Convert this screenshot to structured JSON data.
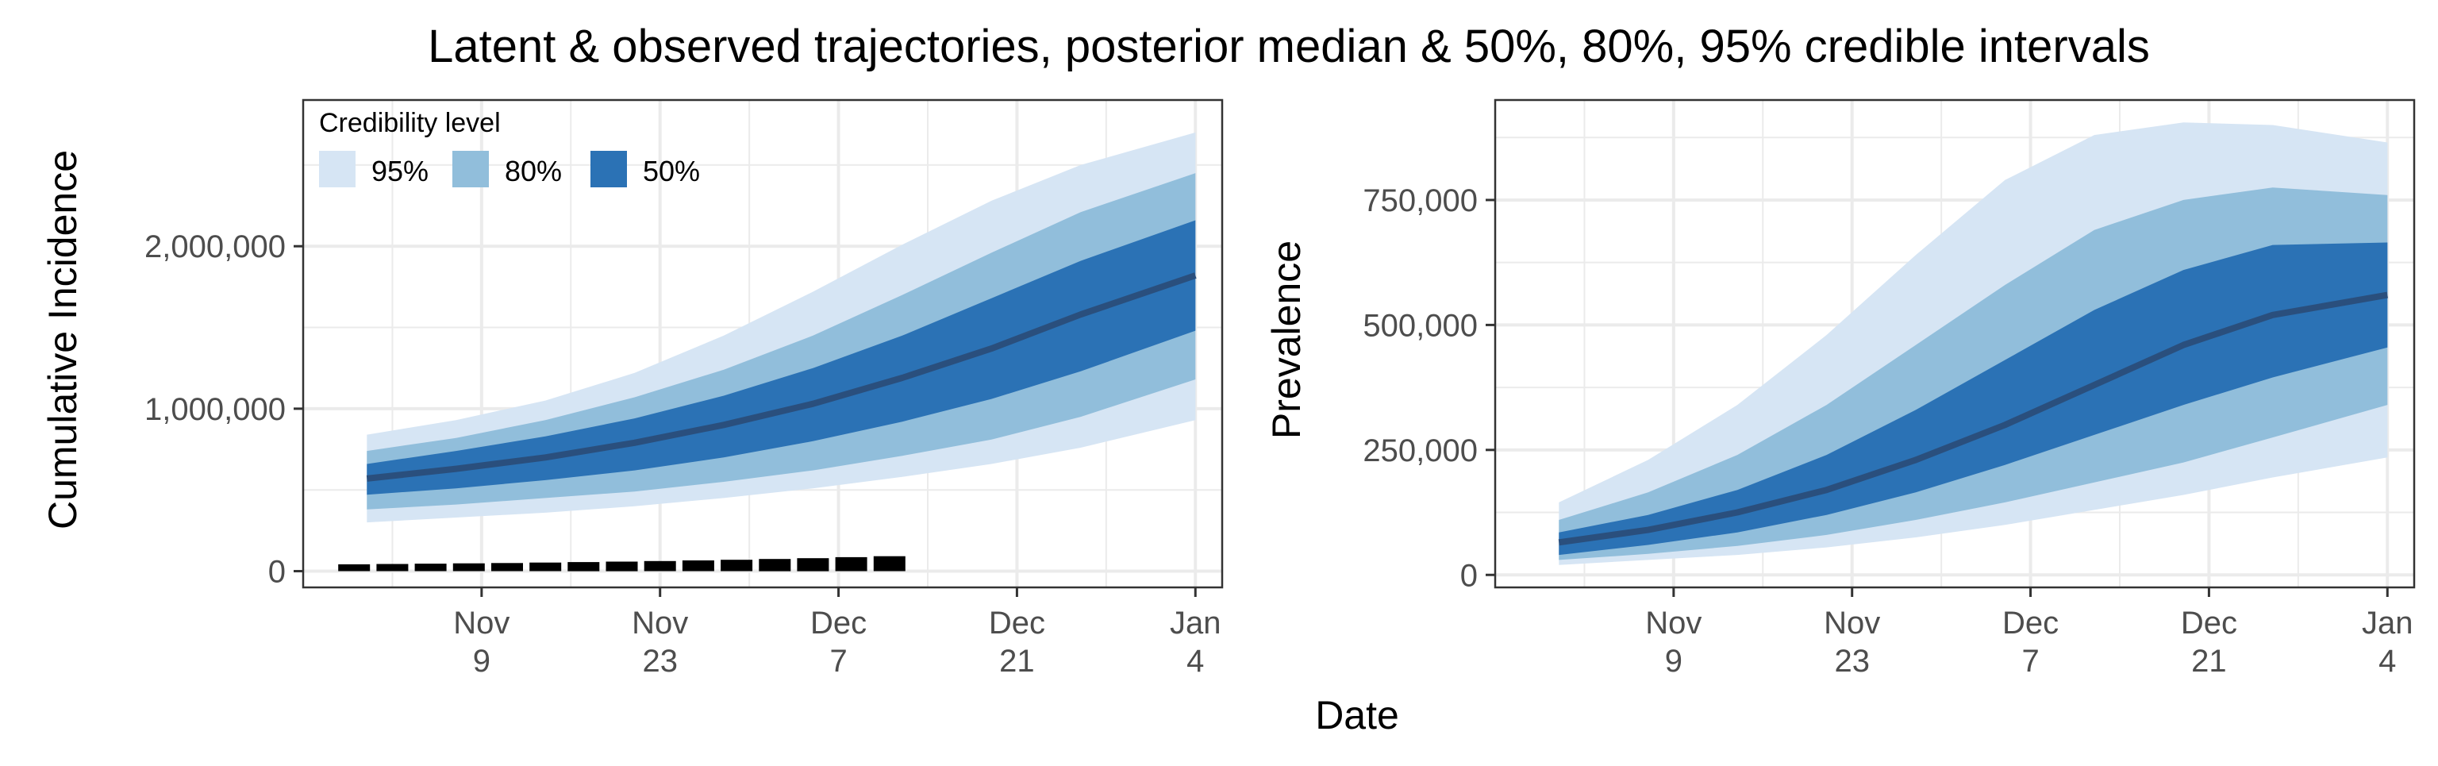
{
  "figure": {
    "title": "Latent & observed trajectories, posterior median & 50%, 80%, 95% credible intervals",
    "xlabel": "Date"
  },
  "colors": {
    "band95": "#d6e5f4",
    "band80": "#91bedb",
    "band50": "#2b72b5",
    "median": "#2a4f7d",
    "observed": "#000000",
    "grid": "#ebebeb",
    "panel_border": "#333333",
    "tick": "#333333"
  },
  "legend": {
    "title": "Credibility level",
    "placement": "top-left inside left panel",
    "items": [
      {
        "label": "95%",
        "color": "#d6e5f4"
      },
      {
        "label": "80%",
        "color": "#91bedb"
      },
      {
        "label": "50%",
        "color": "#2b72b5"
      }
    ]
  },
  "chart_data": [
    {
      "type": "area",
      "ylabel": "Cumulative Incidence",
      "xlim": [
        "2020-10-26",
        "2021-01-04"
      ],
      "ylim": [
        -100000,
        2900000
      ],
      "grid": true,
      "x_ticks": [
        {
          "date": "2020-11-09",
          "month": "Nov",
          "day": "9"
        },
        {
          "date": "2020-11-23",
          "month": "Nov",
          "day": "23"
        },
        {
          "date": "2020-12-07",
          "month": "Dec",
          "day": "7"
        },
        {
          "date": "2020-12-21",
          "month": "Dec",
          "day": "21"
        },
        {
          "date": "2021-01-04",
          "month": "Jan",
          "day": "4"
        }
      ],
      "y_ticks": [
        {
          "value": 0,
          "label": "0"
        },
        {
          "value": 1000000,
          "label": "1,000,000"
        },
        {
          "value": 2000000,
          "label": "2,000,000"
        }
      ],
      "series": {
        "x": [
          "2020-10-31",
          "2020-11-07",
          "2020-11-14",
          "2020-11-21",
          "2020-11-28",
          "2020-12-05",
          "2020-12-12",
          "2020-12-19",
          "2020-12-26",
          "2021-01-04"
        ],
        "median": [
          570000,
          630000,
          700000,
          790000,
          900000,
          1030000,
          1190000,
          1370000,
          1580000,
          1820000
        ],
        "lo50": [
          470000,
          510000,
          560000,
          620000,
          700000,
          800000,
          920000,
          1060000,
          1230000,
          1480000
        ],
        "hi50": [
          660000,
          740000,
          830000,
          940000,
          1080000,
          1250000,
          1450000,
          1680000,
          1910000,
          2160000
        ],
        "lo80": [
          380000,
          410000,
          450000,
          490000,
          550000,
          620000,
          710000,
          810000,
          950000,
          1180000
        ],
        "hi80": [
          740000,
          820000,
          930000,
          1070000,
          1240000,
          1450000,
          1700000,
          1960000,
          2210000,
          2450000
        ],
        "lo95": [
          300000,
          330000,
          360000,
          400000,
          450000,
          510000,
          580000,
          660000,
          760000,
          930000
        ],
        "hi95": [
          840000,
          930000,
          1050000,
          1220000,
          1450000,
          1720000,
          2010000,
          2280000,
          2500000,
          2700000
        ]
      },
      "observed": {
        "x": [
          "2020-10-30",
          "2020-11-02",
          "2020-11-05",
          "2020-11-08",
          "2020-11-11",
          "2020-11-14",
          "2020-11-17",
          "2020-11-20",
          "2020-11-23",
          "2020-11-26",
          "2020-11-29",
          "2020-12-02",
          "2020-12-05",
          "2020-12-08",
          "2020-12-11"
        ],
        "y": [
          42000,
          44000,
          46000,
          48000,
          50000,
          53000,
          56000,
          59000,
          62000,
          66000,
          70000,
          75000,
          80000,
          86000,
          92000
        ]
      }
    },
    {
      "type": "area",
      "ylabel": "Prevalence",
      "xlim": [
        "2020-10-26",
        "2021-01-04"
      ],
      "ylim": [
        -25000,
        950000
      ],
      "grid": true,
      "x_ticks": [
        {
          "date": "2020-11-09",
          "month": "Nov",
          "day": "9"
        },
        {
          "date": "2020-11-23",
          "month": "Nov",
          "day": "23"
        },
        {
          "date": "2020-12-07",
          "month": "Dec",
          "day": "7"
        },
        {
          "date": "2020-12-21",
          "month": "Dec",
          "day": "21"
        },
        {
          "date": "2021-01-04",
          "month": "Jan",
          "day": "4"
        }
      ],
      "y_ticks": [
        {
          "value": 0,
          "label": "0"
        },
        {
          "value": 250000,
          "label": "250,000"
        },
        {
          "value": 500000,
          "label": "500,000"
        },
        {
          "value": 750000,
          "label": "750,000"
        }
      ],
      "series": {
        "x": [
          "2020-10-31",
          "2020-11-07",
          "2020-11-14",
          "2020-11-21",
          "2020-11-28",
          "2020-12-05",
          "2020-12-12",
          "2020-12-19",
          "2020-12-26",
          "2021-01-04"
        ],
        "median": [
          65000,
          90000,
          125000,
          170000,
          230000,
          300000,
          380000,
          460000,
          520000,
          560000
        ],
        "lo50": [
          40000,
          60000,
          85000,
          120000,
          165000,
          220000,
          280000,
          340000,
          395000,
          455000
        ],
        "hi50": [
          85000,
          120000,
          170000,
          240000,
          330000,
          430000,
          530000,
          610000,
          660000,
          665000
        ],
        "lo80": [
          30000,
          42000,
          58000,
          80000,
          110000,
          145000,
          185000,
          225000,
          275000,
          340000
        ],
        "hi80": [
          110000,
          165000,
          240000,
          340000,
          460000,
          580000,
          690000,
          750000,
          775000,
          760000
        ],
        "lo95": [
          20000,
          30000,
          40000,
          55000,
          75000,
          100000,
          130000,
          160000,
          195000,
          235000
        ],
        "hi95": [
          145000,
          230000,
          340000,
          480000,
          640000,
          790000,
          880000,
          905000,
          900000,
          865000
        ]
      }
    }
  ]
}
